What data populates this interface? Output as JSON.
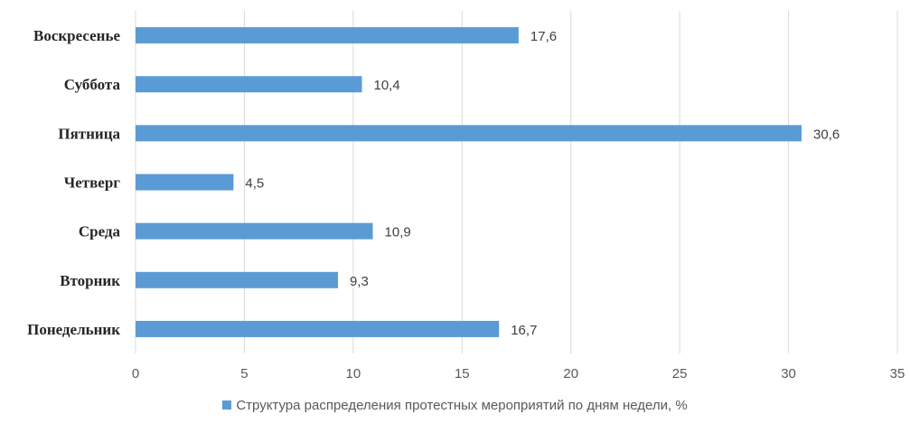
{
  "chart_data": {
    "type": "bar",
    "orientation": "horizontal",
    "categories": [
      "Воскресенье",
      "Суббота",
      "Пятница",
      "Четверг",
      "Среда",
      "Вторник",
      "Понедельник"
    ],
    "series": [
      {
        "name": "Структура распределения протестных мероприятий по дням недели, %",
        "values": [
          17.6,
          10.4,
          30.6,
          4.5,
          10.9,
          9.3,
          16.7
        ],
        "value_labels": [
          "17,6",
          "10,4",
          "30,6",
          "4,5",
          "10,9",
          "9,3",
          "16,7"
        ],
        "color": "#5b9bd5"
      }
    ],
    "xlim": [
      0,
      35
    ],
    "xticks": [
      0,
      5,
      10,
      15,
      20,
      25,
      30,
      35
    ],
    "xtick_labels": [
      "0",
      "5",
      "10",
      "15",
      "20",
      "25",
      "30",
      "35"
    ],
    "grid": "vertical",
    "legend_position": "bottom"
  }
}
